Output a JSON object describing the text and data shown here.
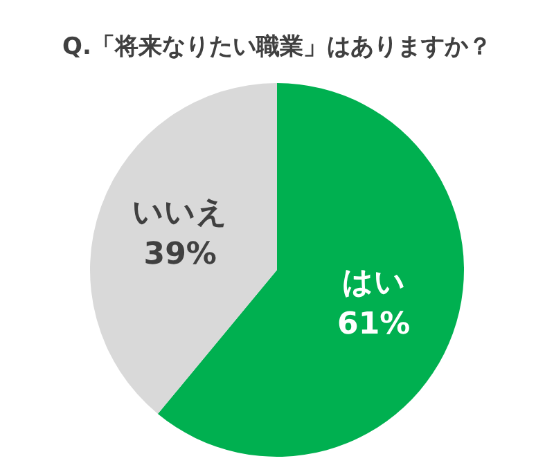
{
  "chart_data": {
    "type": "pie",
    "title": "Q.「将来なりたい職業」はありますか？",
    "categories": [
      "はい",
      "いいえ"
    ],
    "values": [
      61,
      39
    ],
    "colors": [
      "#00b050",
      "#d9d9d9"
    ],
    "value_labels": [
      "61%",
      "39%"
    ],
    "legend": false
  }
}
